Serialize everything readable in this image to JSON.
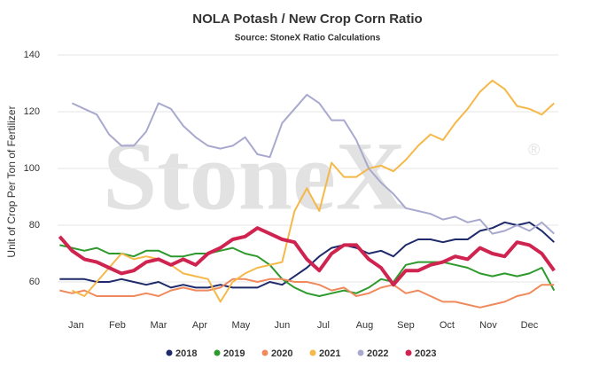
{
  "chart_data": {
    "type": "line",
    "title": "NOLA Potash / New Crop Corn Ratio",
    "subtitle": "Source: StoneX Ratio Calculations",
    "y_label": "Unit of Crop Per Ton of Fertilizer",
    "watermark": "StoneX",
    "watermark_mark": "®",
    "x": [
      0.6,
      0.9,
      1.2,
      1.5,
      1.8,
      2.1,
      2.4,
      2.7,
      3.0,
      3.3,
      3.6,
      3.9,
      4.2,
      4.5,
      4.8,
      5.1,
      5.4,
      5.7,
      6.0,
      6.3,
      6.6,
      6.9,
      7.2,
      7.5,
      7.8,
      8.1,
      8.4,
      8.7,
      9.0,
      9.3,
      9.6,
      9.9,
      10.2,
      10.5,
      10.8,
      11.1,
      11.4,
      11.7,
      12.0,
      12.3,
      12.6
    ],
    "xlim": [
      0.55,
      12.7
    ],
    "xticks": [
      {
        "value": 1,
        "label": "Jan"
      },
      {
        "value": 2,
        "label": "Feb"
      },
      {
        "value": 3,
        "label": "Mar"
      },
      {
        "value": 4,
        "label": "Apr"
      },
      {
        "value": 5,
        "label": "May"
      },
      {
        "value": 6,
        "label": "Jun"
      },
      {
        "value": 7,
        "label": "Jul"
      },
      {
        "value": 8,
        "label": "Aug"
      },
      {
        "value": 9,
        "label": "Sep"
      },
      {
        "value": 10,
        "label": "Oct"
      },
      {
        "value": 11,
        "label": "Nov"
      },
      {
        "value": 12,
        "label": "Dec"
      }
    ],
    "ylim": [
      50,
      140
    ],
    "yticks": [
      60,
      80,
      100,
      120,
      140
    ],
    "grid": true,
    "legend": "bottom",
    "series": [
      {
        "name": "2018",
        "color": "#1f2a6b",
        "width": 2,
        "values": [
          61,
          61,
          61,
          60,
          60,
          61,
          60,
          59,
          60,
          58,
          59,
          58,
          58,
          59,
          58,
          58,
          58,
          60,
          59,
          62,
          65,
          69,
          72,
          73,
          72,
          70,
          71,
          69,
          73,
          75,
          75,
          74,
          75,
          75,
          78,
          79,
          81,
          80,
          81,
          78,
          74
        ]
      },
      {
        "name": "2019",
        "color": "#2e9a2e",
        "width": 2,
        "values": [
          73,
          72,
          71,
          72,
          70,
          70,
          69,
          71,
          71,
          69,
          69,
          70,
          70,
          71,
          72,
          70,
          69,
          66,
          61,
          58,
          56,
          55,
          56,
          57,
          56,
          58,
          61,
          60,
          66,
          67,
          67,
          67,
          66,
          65,
          63,
          62,
          63,
          62,
          63,
          65,
          57
        ]
      },
      {
        "name": "2020",
        "color": "#f08a5d",
        "width": 2,
        "values": [
          57,
          56,
          57,
          55,
          55,
          55,
          55,
          56,
          55,
          57,
          58,
          57,
          57,
          58,
          61,
          61,
          60,
          61,
          61,
          60,
          60,
          59,
          57,
          58,
          55,
          56,
          58,
          59,
          56,
          57,
          55,
          53,
          53,
          52,
          51,
          52,
          53,
          55,
          56,
          59,
          59
        ]
      },
      {
        "name": "2021",
        "color": "#f5b849",
        "width": 2,
        "values": [
          null,
          57,
          55,
          60,
          65,
          70,
          68,
          69,
          68,
          66,
          63,
          62,
          61,
          53,
          60,
          63,
          65,
          66,
          67,
          85,
          93,
          85,
          102,
          97,
          97,
          100,
          101,
          99,
          103,
          108,
          112,
          110,
          116,
          121,
          127,
          131,
          128,
          122,
          121,
          119,
          123
        ]
      },
      {
        "name": "2022",
        "color": "#a9a9cf",
        "width": 2,
        "values": [
          null,
          123,
          121,
          119,
          112,
          108,
          108,
          113,
          123,
          121,
          115,
          111,
          108,
          107,
          108,
          111,
          105,
          104,
          116,
          121,
          126,
          123,
          117,
          117,
          110,
          100,
          95,
          91,
          86,
          85,
          84,
          82,
          83,
          81,
          82,
          77,
          78,
          80,
          78,
          81,
          77
        ]
      },
      {
        "name": "2023",
        "color": "#cf2350",
        "width": 4,
        "values": [
          76,
          71,
          68,
          67,
          65,
          63,
          64,
          67,
          68,
          66,
          68,
          66,
          70,
          72,
          75,
          76,
          79,
          77,
          75,
          74,
          68,
          64,
          70,
          73,
          73,
          68,
          65,
          59,
          64,
          64,
          66,
          67,
          69,
          68,
          72,
          70,
          69,
          74,
          73,
          70,
          64
        ]
      }
    ]
  }
}
